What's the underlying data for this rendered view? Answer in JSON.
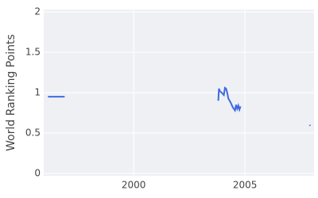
{
  "chart_data": {
    "type": "line",
    "y_label": "World Ranking Points",
    "x": [
      1996.15,
      1996.9,
      1997.0,
      2003.8,
      2003.83,
      2003.87,
      2003.95,
      2004.05,
      2004.1,
      2004.15,
      2004.2,
      2004.25,
      2004.35,
      2004.45,
      2004.55,
      2004.6,
      2004.65,
      2004.7,
      2004.75,
      2004.8,
      2004.85,
      2007.9,
      2007.93
    ],
    "series": [
      {
        "name": "World Ranking Points",
        "color": "#4169e1",
        "values": [
          0.95,
          0.95,
          null,
          0.9,
          1.05,
          1.02,
          1.0,
          0.97,
          1.06,
          1.05,
          1.0,
          0.93,
          0.88,
          0.82,
          0.78,
          0.85,
          0.8,
          0.84,
          0.79,
          0.83,
          null,
          0.6,
          0.59
        ]
      }
    ],
    "xlim": [
      1995.96,
      2008.1
    ],
    "xticks": [
      2000,
      2005
    ],
    "ylim": [
      -0.03,
      2.03
    ],
    "yticks": [
      0,
      0.5,
      1,
      1.5,
      2
    ],
    "grid": true,
    "background": "#eef0f4"
  }
}
